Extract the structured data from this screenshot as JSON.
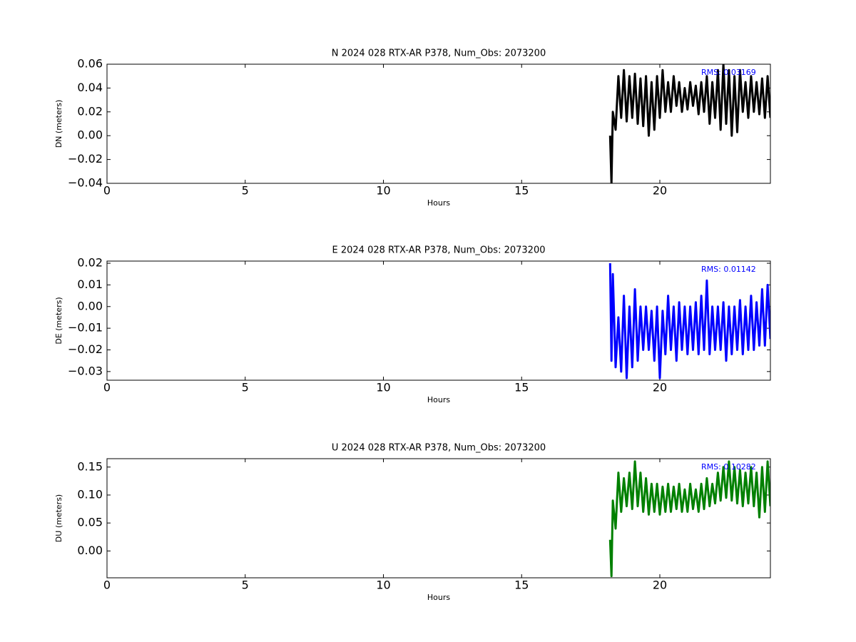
{
  "chart_data": [
    {
      "type": "line",
      "title": "N 2024 028 RTX-AR  P378, Num_Obs: 2073200",
      "xlabel": "Hours",
      "ylabel": "DN (meters)",
      "annotation": "RMS:  0.03169",
      "color": "#000000",
      "xlim": [
        0,
        24
      ],
      "xticks": [
        0,
        5,
        10,
        15,
        20
      ],
      "ylim": [
        -0.04,
        0.06
      ],
      "yticks": [
        0.06,
        0.04,
        0.02,
        {
          "value": 0,
          "label": "0.00"
        },
        {
          "value": -0.02,
          "label": "−0.02"
        },
        {
          "value": -0.04,
          "label": "−0.04"
        }
      ],
      "x": [
        18.2,
        18.25,
        18.3,
        18.4,
        18.5,
        18.6,
        18.7,
        18.8,
        18.9,
        19.0,
        19.1,
        19.2,
        19.3,
        19.4,
        19.5,
        19.6,
        19.7,
        19.8,
        19.9,
        20.0,
        20.1,
        20.2,
        20.3,
        20.4,
        20.5,
        20.6,
        20.7,
        20.8,
        20.9,
        21.0,
        21.1,
        21.2,
        21.3,
        21.4,
        21.5,
        21.6,
        21.7,
        21.8,
        21.9,
        22.0,
        22.1,
        22.2,
        22.3,
        22.4,
        22.5,
        22.6,
        22.7,
        22.8,
        22.9,
        23.0,
        23.1,
        23.2,
        23.3,
        23.4,
        23.5,
        23.6,
        23.7,
        23.8,
        23.9,
        24.0
      ],
      "values": [
        0.0,
        -0.04,
        0.02,
        0.005,
        0.05,
        0.015,
        0.055,
        0.012,
        0.05,
        0.015,
        0.052,
        0.01,
        0.048,
        0.008,
        0.05,
        0.0,
        0.045,
        0.005,
        0.05,
        0.015,
        0.055,
        0.02,
        0.045,
        0.02,
        0.05,
        0.025,
        0.045,
        0.02,
        0.04,
        0.022,
        0.045,
        0.025,
        0.042,
        0.018,
        0.045,
        0.02,
        0.05,
        0.01,
        0.045,
        0.015,
        0.055,
        0.005,
        0.06,
        0.01,
        0.055,
        0.0,
        0.05,
        0.003,
        0.055,
        0.02,
        0.045,
        0.015,
        0.05,
        0.02,
        0.045,
        0.018,
        0.048,
        0.015,
        0.05,
        0.015
      ]
    },
    {
      "type": "line",
      "title": "E 2024 028 RTX-AR  P378, Num_Obs: 2073200",
      "xlabel": "Hours",
      "ylabel": "DE (meters)",
      "annotation": "RMS:  0.01142",
      "color": "#0000ff",
      "xlim": [
        0,
        24
      ],
      "xticks": [
        0,
        5,
        10,
        15,
        20
      ],
      "ylim": [
        -0.034,
        0.021
      ],
      "yticks": [
        0.02,
        0.01,
        {
          "value": 0,
          "label": "0.00"
        },
        {
          "value": -0.01,
          "label": "−0.01"
        },
        {
          "value": -0.02,
          "label": "−0.02"
        },
        {
          "value": -0.03,
          "label": "−0.03"
        }
      ],
      "x": [
        18.2,
        18.25,
        18.3,
        18.4,
        18.5,
        18.6,
        18.7,
        18.8,
        18.9,
        19.0,
        19.1,
        19.2,
        19.3,
        19.4,
        19.5,
        19.6,
        19.7,
        19.8,
        19.9,
        20.0,
        20.1,
        20.2,
        20.3,
        20.4,
        20.5,
        20.6,
        20.7,
        20.8,
        20.9,
        21.0,
        21.1,
        21.2,
        21.3,
        21.4,
        21.5,
        21.6,
        21.7,
        21.8,
        21.9,
        22.0,
        22.1,
        22.2,
        22.3,
        22.4,
        22.5,
        22.6,
        22.7,
        22.8,
        22.9,
        23.0,
        23.1,
        23.2,
        23.3,
        23.4,
        23.5,
        23.6,
        23.7,
        23.8,
        23.9,
        24.0
      ],
      "values": [
        0.02,
        -0.025,
        0.015,
        -0.028,
        -0.005,
        -0.03,
        0.005,
        -0.033,
        0.0,
        -0.028,
        0.008,
        -0.025,
        0.0,
        -0.02,
        0.0,
        -0.02,
        -0.002,
        -0.025,
        0.0,
        -0.033,
        -0.002,
        -0.022,
        0.005,
        -0.02,
        0.0,
        -0.025,
        0.002,
        -0.02,
        0.0,
        -0.022,
        0.0,
        -0.02,
        0.002,
        -0.022,
        0.005,
        -0.02,
        0.012,
        -0.022,
        0.0,
        -0.02,
        0.0,
        -0.02,
        0.002,
        -0.025,
        0.0,
        -0.022,
        0.0,
        -0.02,
        0.003,
        -0.022,
        0.0,
        -0.02,
        0.005,
        -0.02,
        0.002,
        -0.018,
        0.008,
        -0.018,
        0.01,
        -0.015
      ]
    },
    {
      "type": "line",
      "title": "U 2024 028 RTX-AR  P378, Num_Obs: 2073200",
      "xlabel": "Hours",
      "ylabel": "DU (meters)",
      "annotation": "RMS:  0.10282",
      "color": "#008000",
      "xlim": [
        0,
        24
      ],
      "xticks": [
        0,
        5,
        10,
        15,
        20
      ],
      "ylim": [
        -0.048,
        0.165
      ],
      "yticks": [
        0.15,
        {
          "value": 0.1,
          "label": "0.10"
        },
        0.05,
        {
          "value": 0,
          "label": "0.00"
        }
      ],
      "x": [
        18.2,
        18.25,
        18.3,
        18.4,
        18.5,
        18.6,
        18.7,
        18.8,
        18.9,
        19.0,
        19.1,
        19.2,
        19.3,
        19.4,
        19.5,
        19.6,
        19.7,
        19.8,
        19.9,
        20.0,
        20.1,
        20.2,
        20.3,
        20.4,
        20.5,
        20.6,
        20.7,
        20.8,
        20.9,
        21.0,
        21.1,
        21.2,
        21.3,
        21.4,
        21.5,
        21.6,
        21.7,
        21.8,
        21.9,
        22.0,
        22.1,
        22.2,
        22.3,
        22.4,
        22.5,
        22.6,
        22.7,
        22.8,
        22.9,
        23.0,
        23.1,
        23.2,
        23.3,
        23.4,
        23.5,
        23.6,
        23.7,
        23.8,
        23.9,
        24.0
      ],
      "values": [
        0.02,
        -0.045,
        0.09,
        0.04,
        0.14,
        0.07,
        0.13,
        0.08,
        0.14,
        0.075,
        0.16,
        0.08,
        0.14,
        0.07,
        0.13,
        0.065,
        0.12,
        0.07,
        0.12,
        0.065,
        0.115,
        0.07,
        0.12,
        0.07,
        0.115,
        0.075,
        0.12,
        0.07,
        0.11,
        0.07,
        0.12,
        0.075,
        0.11,
        0.07,
        0.12,
        0.075,
        0.13,
        0.08,
        0.12,
        0.085,
        0.14,
        0.09,
        0.15,
        0.095,
        0.16,
        0.09,
        0.15,
        0.085,
        0.145,
        0.08,
        0.14,
        0.085,
        0.15,
        0.08,
        0.14,
        0.06,
        0.15,
        0.07,
        0.16,
        0.08
      ]
    }
  ]
}
